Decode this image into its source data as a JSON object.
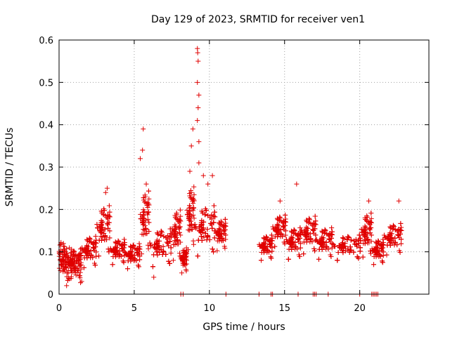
{
  "chart_data": {
    "type": "scatter",
    "title": "Day 129 of 2023, SRMTID for receiver ven1",
    "xlabel": "GPS time / hours",
    "ylabel": "SRMTID / TECUs",
    "xlim": [
      0,
      24.6
    ],
    "ylim": [
      0,
      0.6
    ],
    "xticks": [
      0,
      5,
      10,
      15,
      20
    ],
    "yticks": [
      0,
      0.1,
      0.2,
      0.3,
      0.4,
      0.5,
      0.6
    ],
    "ytick_labels": [
      "0",
      "0.1",
      "0.2",
      "0.3",
      "0.4",
      "0.5",
      "0.6"
    ],
    "grid": true,
    "marker": "+",
    "color": "#e00000",
    "segments": [
      {
        "x": [
          0.0,
          0.4
        ],
        "level": 0.09,
        "spread": 0.05
      },
      {
        "x": [
          0.4,
          1.5
        ],
        "level": 0.07,
        "spread": 0.05
      },
      {
        "x": [
          1.5,
          2.5
        ],
        "level": 0.1,
        "spread": 0.05
      },
      {
        "x": [
          2.5,
          3.4
        ],
        "level": 0.15,
        "spread": 0.08
      },
      {
        "x": [
          3.4,
          4.4
        ],
        "level": 0.1,
        "spread": 0.04
      },
      {
        "x": [
          4.4,
          5.4
        ],
        "level": 0.09,
        "spread": 0.04
      },
      {
        "x": [
          5.4,
          6.0
        ],
        "level": 0.17,
        "spread": 0.1
      },
      {
        "x": [
          6.0,
          7.5
        ],
        "level": 0.11,
        "spread": 0.06
      },
      {
        "x": [
          7.5,
          8.1
        ],
        "level": 0.14,
        "spread": 0.08
      },
      {
        "x": [
          8.1,
          8.5
        ],
        "level": 0.08,
        "spread": 0.04
      },
      {
        "x": [
          8.5,
          9.0
        ],
        "level": 0.18,
        "spread": 0.1
      },
      {
        "x": [
          9.0,
          10.4
        ],
        "level": 0.15,
        "spread": 0.08
      },
      {
        "x": [
          10.4,
          11.1
        ],
        "level": 0.14,
        "spread": 0.05
      },
      {
        "x": [
          13.3,
          14.2
        ],
        "level": 0.11,
        "spread": 0.04
      },
      {
        "x": [
          14.2,
          15.1
        ],
        "level": 0.15,
        "spread": 0.05
      },
      {
        "x": [
          15.1,
          16.1
        ],
        "level": 0.12,
        "spread": 0.05
      },
      {
        "x": [
          16.1,
          17.1
        ],
        "level": 0.14,
        "spread": 0.06
      },
      {
        "x": [
          17.1,
          18.2
        ],
        "level": 0.12,
        "spread": 0.05
      },
      {
        "x": [
          18.2,
          20.1
        ],
        "level": 0.11,
        "spread": 0.04
      },
      {
        "x": [
          20.1,
          20.8
        ],
        "level": 0.14,
        "spread": 0.07
      },
      {
        "x": [
          20.8,
          21.6
        ],
        "level": 0.1,
        "spread": 0.04
      },
      {
        "x": [
          21.6,
          22.8
        ],
        "level": 0.13,
        "spread": 0.05
      }
    ],
    "peaks": [
      {
        "x": 5.6,
        "y": 0.39
      },
      {
        "x": 5.55,
        "y": 0.34
      },
      {
        "x": 5.4,
        "y": 0.32
      },
      {
        "x": 5.8,
        "y": 0.26
      },
      {
        "x": 8.9,
        "y": 0.39
      },
      {
        "x": 8.8,
        "y": 0.35
      },
      {
        "x": 9.2,
        "y": 0.58
      },
      {
        "x": 9.22,
        "y": 0.57
      },
      {
        "x": 9.25,
        "y": 0.55
      },
      {
        "x": 9.2,
        "y": 0.5
      },
      {
        "x": 9.3,
        "y": 0.47
      },
      {
        "x": 9.25,
        "y": 0.44
      },
      {
        "x": 9.2,
        "y": 0.41
      },
      {
        "x": 9.3,
        "y": 0.36
      },
      {
        "x": 9.3,
        "y": 0.31
      },
      {
        "x": 8.7,
        "y": 0.29
      },
      {
        "x": 9.6,
        "y": 0.28
      },
      {
        "x": 9.9,
        "y": 0.26
      },
      {
        "x": 10.2,
        "y": 0.28
      },
      {
        "x": 3.2,
        "y": 0.25
      },
      {
        "x": 3.1,
        "y": 0.24
      },
      {
        "x": 15.8,
        "y": 0.26
      },
      {
        "x": 14.7,
        "y": 0.22
      },
      {
        "x": 20.6,
        "y": 0.22
      },
      {
        "x": 22.6,
        "y": 0.22
      },
      {
        "x": 6.3,
        "y": 0.04
      },
      {
        "x": 0.5,
        "y": 0.02
      },
      {
        "x": 1.5,
        "y": 0.03
      }
    ],
    "zero_points": [
      8.1,
      8.25,
      11.1,
      13.3,
      14.1,
      14.2,
      15.9,
      16.9,
      17.0,
      17.1,
      17.9,
      20.0,
      20.8,
      20.9,
      21.0,
      21.1,
      21.2
    ]
  }
}
